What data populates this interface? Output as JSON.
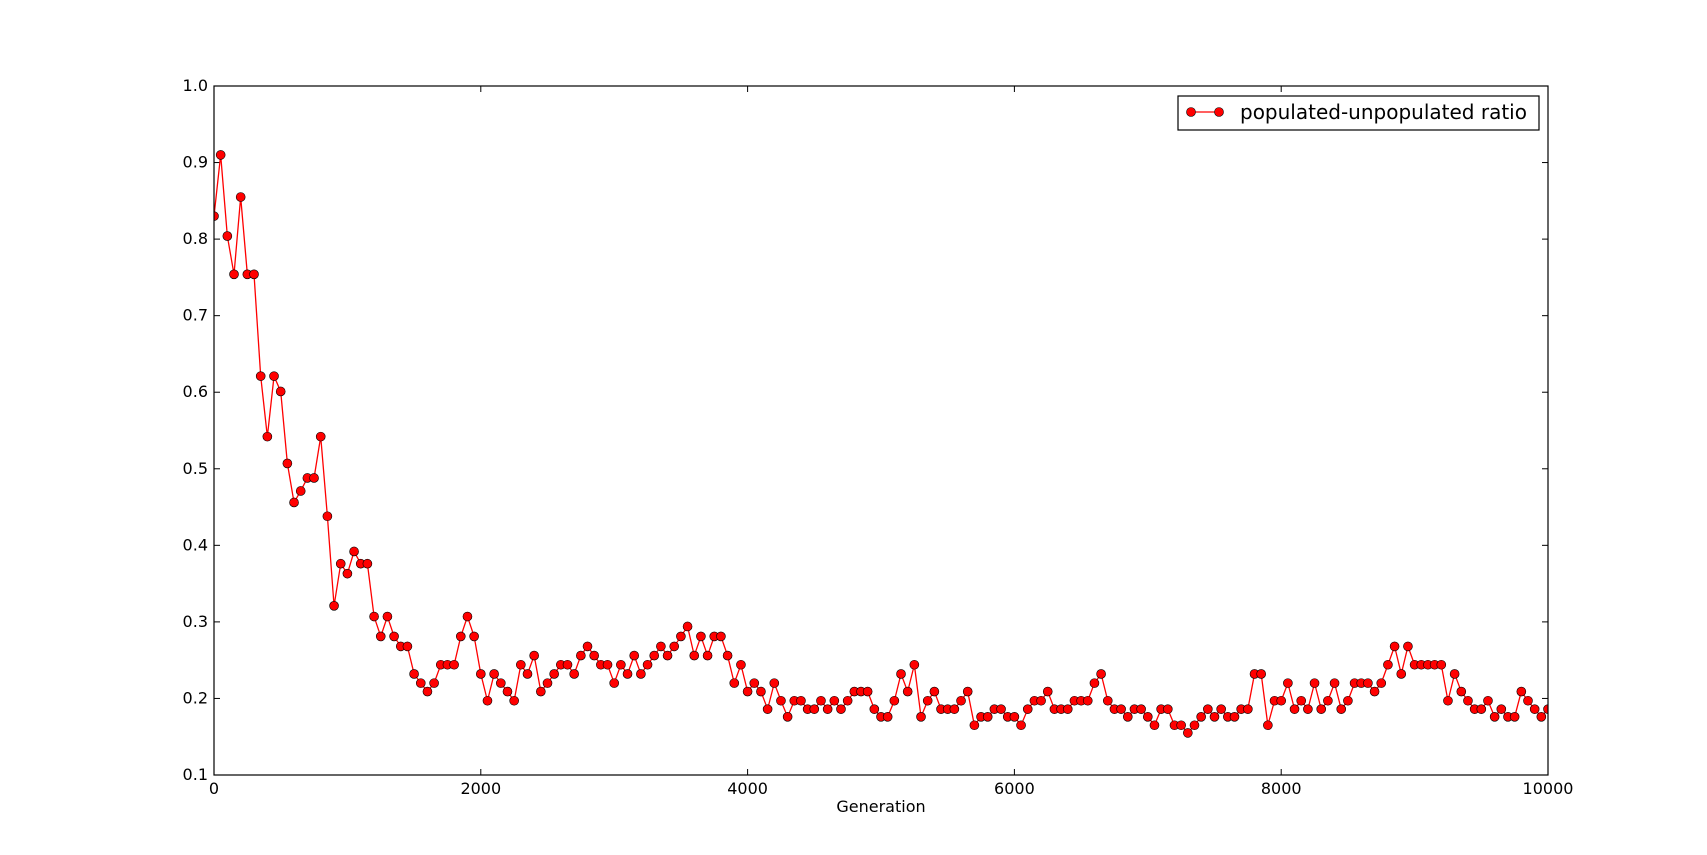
{
  "chart_data": {
    "type": "line",
    "title": "",
    "xlabel": "Generation",
    "ylabel": "",
    "xlim": [
      0,
      10000
    ],
    "ylim": [
      0.1,
      1.0
    ],
    "x_ticks": [
      "0",
      "2000",
      "4000",
      "6000",
      "8000",
      "10000"
    ],
    "y_ticks": [
      "0.1",
      "0.2",
      "0.3",
      "0.4",
      "0.5",
      "0.6",
      "0.7",
      "0.8",
      "0.9",
      "1.0"
    ],
    "grid": false,
    "legend_position": "top-right",
    "series": [
      {
        "name": "populated-unpopulated ratio",
        "color": "#ff0000",
        "marker": "circle",
        "x": [
          0,
          50,
          100,
          150,
          200,
          250,
          300,
          350,
          400,
          450,
          500,
          550,
          600,
          650,
          700,
          750,
          800,
          850,
          900,
          950,
          1000,
          1050,
          1100,
          1150,
          1200,
          1250,
          1300,
          1350,
          1400,
          1450,
          1500,
          1550,
          1600,
          1650,
          1700,
          1750,
          1800,
          1850,
          1900,
          1950,
          2000,
          2050,
          2100,
          2150,
          2200,
          2250,
          2300,
          2350,
          2400,
          2450,
          2500,
          2550,
          2600,
          2650,
          2700,
          2750,
          2800,
          2850,
          2900,
          2950,
          3000,
          3050,
          3100,
          3150,
          3200,
          3250,
          3300,
          3350,
          3400,
          3450,
          3500,
          3550,
          3600,
          3650,
          3700,
          3750,
          3800,
          3850,
          3900,
          3950,
          4000,
          4050,
          4100,
          4150,
          4200,
          4250,
          4300,
          4350,
          4400,
          4450,
          4500,
          4550,
          4600,
          4650,
          4700,
          4750,
          4800,
          4850,
          4900,
          4950,
          5000,
          5050,
          5100,
          5150,
          5200,
          5250,
          5300,
          5350,
          5400,
          5450,
          5500,
          5550,
          5600,
          5650,
          5700,
          5750,
          5800,
          5850,
          5900,
          5950,
          6000,
          6050,
          6100,
          6150,
          6200,
          6250,
          6300,
          6350,
          6400,
          6450,
          6500,
          6550,
          6600,
          6650,
          6700,
          6750,
          6800,
          6850,
          6900,
          6950,
          7000,
          7050,
          7100,
          7150,
          7200,
          7250,
          7300,
          7350,
          7400,
          7450,
          7500,
          7550,
          7600,
          7650,
          7700,
          7750,
          7800,
          7850,
          7900,
          7950,
          8000,
          8050,
          8100,
          8150,
          8200,
          8250,
          8300,
          8350,
          8400,
          8450,
          8500,
          8550,
          8600,
          8650,
          8700,
          8750,
          8800,
          8850,
          8900,
          8950,
          9000,
          9050,
          9100,
          9150,
          9200,
          9250,
          9300,
          9350,
          9400,
          9450,
          9500,
          9550,
          9600,
          9650,
          9700,
          9750,
          9800,
          9850,
          9900,
          9950,
          10000
        ],
        "y": [
          0.83,
          0.91,
          0.804,
          0.754,
          0.855,
          0.754,
          0.754,
          0.621,
          0.542,
          0.621,
          0.601,
          0.507,
          0.456,
          0.471,
          0.488,
          0.488,
          0.542,
          0.438,
          0.321,
          0.376,
          0.363,
          0.392,
          0.376,
          0.376,
          0.307,
          0.281,
          0.307,
          0.281,
          0.268,
          0.268,
          0.232,
          0.22,
          0.209,
          0.22,
          0.244,
          0.244,
          0.244,
          0.281,
          0.307,
          0.281,
          0.232,
          0.197,
          0.232,
          0.22,
          0.209,
          0.197,
          0.244,
          0.232,
          0.256,
          0.209,
          0.22,
          0.232,
          0.244,
          0.244,
          0.232,
          0.256,
          0.268,
          0.256,
          0.244,
          0.244,
          0.22,
          0.244,
          0.232,
          0.256,
          0.232,
          0.244,
          0.256,
          0.268,
          0.256,
          0.268,
          0.281,
          0.294,
          0.256,
          0.281,
          0.256,
          0.281,
          0.281,
          0.256,
          0.22,
          0.244,
          0.209,
          0.22,
          0.209,
          0.186,
          0.22,
          0.197,
          0.176,
          0.197,
          0.197,
          0.186,
          0.186,
          0.197,
          0.186,
          0.197,
          0.186,
          0.197,
          0.209,
          0.209,
          0.209,
          0.186,
          0.176,
          0.176,
          0.197,
          0.232,
          0.209,
          0.244,
          0.176,
          0.197,
          0.209,
          0.186,
          0.186,
          0.186,
          0.197,
          0.209,
          0.165,
          0.176,
          0.176,
          0.186,
          0.186,
          0.176,
          0.176,
          0.165,
          0.186,
          0.197,
          0.197,
          0.209,
          0.186,
          0.186,
          0.186,
          0.197,
          0.197,
          0.197,
          0.22,
          0.232,
          0.197,
          0.186,
          0.186,
          0.176,
          0.186,
          0.186,
          0.176,
          0.165,
          0.186,
          0.186,
          0.165,
          0.165,
          0.155,
          0.165,
          0.176,
          0.186,
          0.176,
          0.186,
          0.176,
          0.176,
          0.186,
          0.186,
          0.232,
          0.232,
          0.165,
          0.197,
          0.197,
          0.22,
          0.186,
          0.197,
          0.186,
          0.22,
          0.186,
          0.197,
          0.22,
          0.186,
          0.197,
          0.22,
          0.22,
          0.22,
          0.209,
          0.22,
          0.244,
          0.268,
          0.232,
          0.268,
          0.244,
          0.244,
          0.244,
          0.244,
          0.244,
          0.197,
          0.232,
          0.209,
          0.197,
          0.186,
          0.186,
          0.197,
          0.176,
          0.186,
          0.176,
          0.176,
          0.209,
          0.197,
          0.186,
          0.176,
          0.186
        ]
      }
    ]
  }
}
